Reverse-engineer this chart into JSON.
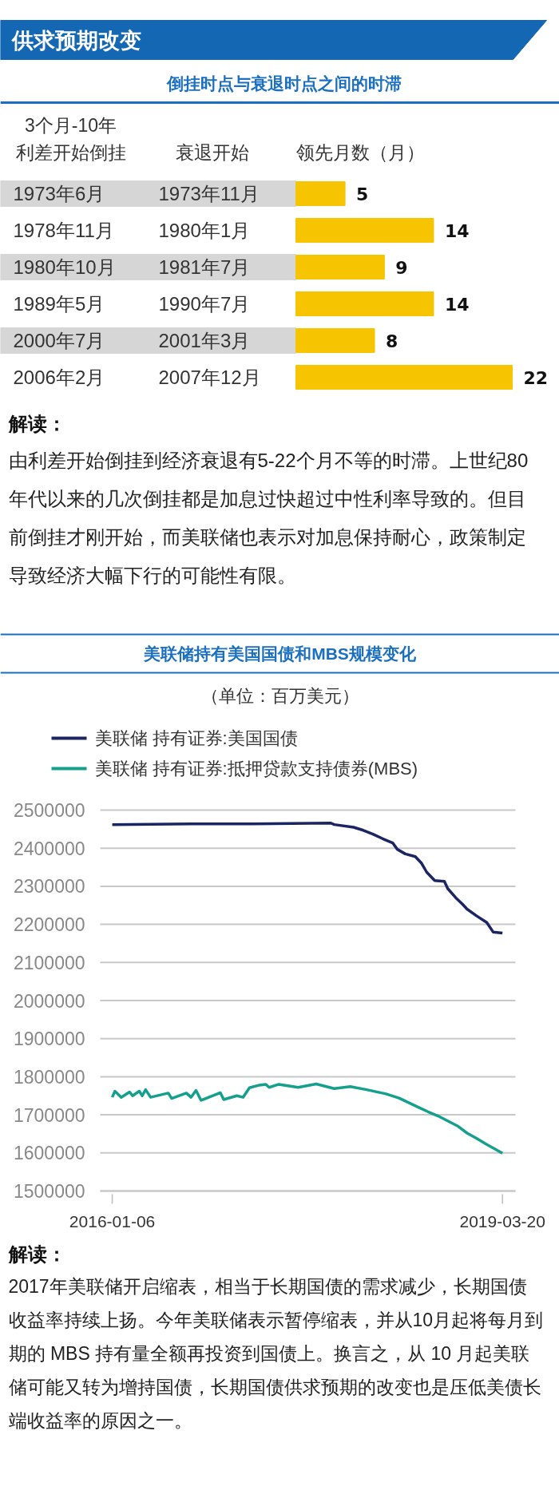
{
  "chart_data": [
    {
      "type": "bar",
      "orientation": "horizontal",
      "title": "倒挂时点与衰退时点之间的时滞",
      "categories": [
        "1973年6月",
        "1978年11月",
        "1980年10月",
        "1989年5月",
        "2000年7月",
        "2006年2月"
      ],
      "values": [
        5,
        14,
        9,
        14,
        8,
        22
      ],
      "color": "#f6c400",
      "data_labels": true,
      "annotations": [
        "供求预期改变",
        "3个月-10年利差开始倒挂",
        "衰退开始",
        "领先月数（月）",
        "1973年11月",
        "1980年1月",
        "1981年7月",
        "1990年7月",
        "2001年3月",
        "2007年12月",
        "解读：",
        "由利差开始倒挂到经济衰退有5-22个月不等的时滞。上世纪80年代以来的几次倒挂都是加息过快超过中性利率导致的。但目前倒挂才刚开始，而美联储也表示对加息保持耐心，政策制定导致经济大幅下行的可能性有限。"
      ]
    },
    {
      "type": "line",
      "title": "美联储持有美国国债和MBS规模变化",
      "subtitle": "（单位：百万美元）",
      "xlim": [
        "2015-12-01",
        "2019-04-28"
      ],
      "xticks": [
        "2016-01-06",
        "2019-03-20"
      ],
      "ylim": [
        1500000,
        2500000
      ],
      "yticks": [
        1500000,
        1600000,
        1700000,
        1800000,
        1900000,
        2000000,
        2100000,
        2200000,
        2300000,
        2400000,
        2500000
      ],
      "grid": "y",
      "legend": "top left",
      "line_style": "solid",
      "marker": "none",
      "series": [
        {
          "name": "美联储 持有证券:美国国债",
          "color": "#1b2563",
          "x": [
            "2016-01-06",
            "2016-08-29",
            "2017-03-02",
            "2017-10-22",
            "2017-11-01",
            "2017-12-29",
            "2018-01-27",
            "2018-02-25",
            "2018-03-26",
            "2018-04-25",
            "2018-05-09",
            "2018-06-02",
            "2018-07-02",
            "2018-07-21",
            "2018-08-05",
            "2018-08-29",
            "2018-09-27",
            "2018-10-07",
            "2018-10-31",
            "2018-11-20",
            "2018-12-04",
            "2019-01-02",
            "2019-02-01",
            "2019-02-20",
            "2019-03-20"
          ],
          "values": [
            2462000,
            2464000,
            2464000,
            2466000,
            2462000,
            2455000,
            2447000,
            2437000,
            2425000,
            2414000,
            2397000,
            2385000,
            2378000,
            2360000,
            2337000,
            2315000,
            2313000,
            2294000,
            2270000,
            2253000,
            2240000,
            2222000,
            2205000,
            2180000,
            2177000
          ]
        },
        {
          "name": "美联储 持有证券:抵押贷款支持债券(MBS)",
          "color": "#15a08d",
          "x": [
            "2016-01-06",
            "2016-01-14",
            "2016-02-02",
            "2016-02-27",
            "2016-03-07",
            "2016-03-27",
            "2016-04-05",
            "2016-04-15",
            "2016-04-30",
            "2016-06-22",
            "2016-07-02",
            "2016-08-15",
            "2016-08-29",
            "2016-09-13",
            "2016-09-28",
            "2016-11-25",
            "2016-12-05",
            "2017-01-13",
            "2017-02-01",
            "2017-02-20",
            "2017-03-22",
            "2017-04-10",
            "2017-04-20",
            "2017-05-19",
            "2017-07-16",
            "2017-09-08",
            "2017-11-01",
            "2017-12-19",
            "2018-02-06",
            "2018-04-05",
            "2018-05-14",
            "2018-06-12",
            "2018-07-11",
            "2018-08-09",
            "2018-09-08",
            "2018-10-07",
            "2018-11-05",
            "2018-12-04",
            "2019-01-02",
            "2019-02-01",
            "2019-03-02",
            "2019-03-20"
          ],
          "values": [
            1746000,
            1762000,
            1746000,
            1760000,
            1750000,
            1762000,
            1750000,
            1766000,
            1746000,
            1757000,
            1743000,
            1757000,
            1746000,
            1764000,
            1738000,
            1758000,
            1740000,
            1750000,
            1746000,
            1771000,
            1778000,
            1780000,
            1772000,
            1780000,
            1772000,
            1781000,
            1769000,
            1774000,
            1766000,
            1755000,
            1744000,
            1732000,
            1720000,
            1708000,
            1697000,
            1684000,
            1671000,
            1652000,
            1638000,
            1622000,
            1608000,
            1599000
          ]
        }
      ],
      "annotations": [
        "解读：",
        "2017年美联储开启缩表，相当于长期国债的需求减少，长期国债收益率持续上扬。今年美联储表示暂停缩表，并从10月起将每月到期的 MBS 持有量全额再投资到国债上。换言之，从 10 月起美联储可能又转为增持国债，长期国债供求预期的改变也是压低美债长端收益率的原因之一。"
      ]
    }
  ]
}
